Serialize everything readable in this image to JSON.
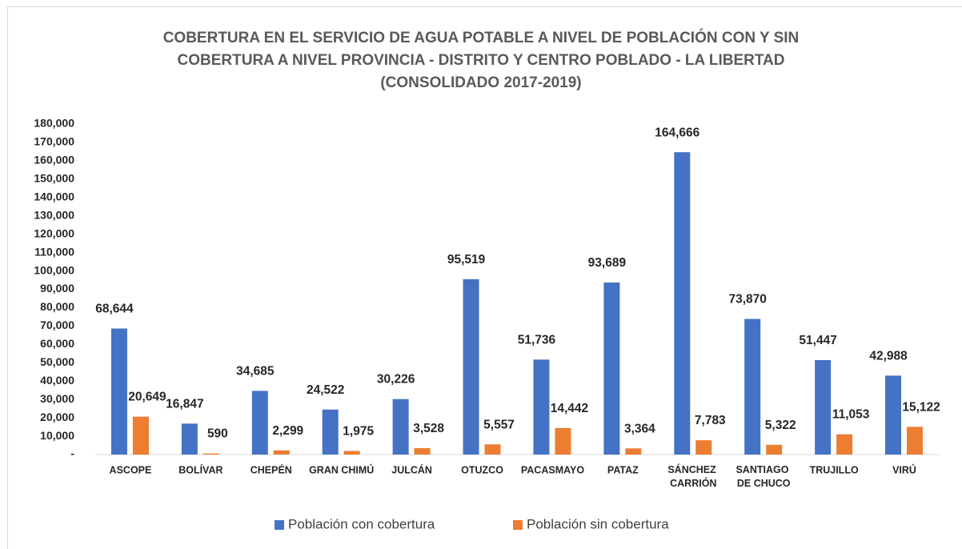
{
  "chart_data": {
    "type": "bar",
    "title": [
      "COBERTURA EN EL SERVICIO DE AGUA POTABLE A NIVEL DE POBLACIÓN CON Y SIN",
      "COBERTURA A NIVEL PROVINCIA - DISTRITO Y CENTRO POBLADO - LA LIBERTAD",
      "(CONSOLIDADO 2017-2019)"
    ],
    "categories": [
      "ASCOPE",
      "BOLÍVAR",
      "CHEPÉN",
      "GRAN CHIMÚ",
      "JULCÁN",
      "OTUZCO",
      "PACASMAYO",
      "PATAZ",
      "SÁNCHEZ CARRIÓN",
      "SANTIAGO DE CHUCO",
      "TRUJILLO",
      "VIRÚ"
    ],
    "series": [
      {
        "name": "Población con cobertura",
        "color": "#4472c4",
        "values": [
          68644,
          16847,
          34685,
          24522,
          30226,
          95519,
          51736,
          93689,
          164666,
          73870,
          51447,
          42988
        ],
        "value_labels": [
          "68,644",
          "16,847",
          "34,685",
          "24,522",
          "30,226",
          "95,519",
          "51,736",
          "93,689",
          "164,666",
          "73,870",
          "51,447",
          "42,988"
        ]
      },
      {
        "name": "Población sin cobertura",
        "color": "#ed7d31",
        "values": [
          20649,
          590,
          2299,
          1975,
          3528,
          5557,
          14442,
          3364,
          7783,
          5322,
          11053,
          15122
        ],
        "value_labels": [
          "20,649",
          "590",
          "2,299",
          "1,975",
          "3,528",
          "5,557",
          "14,442",
          "3,364",
          "7,783",
          "5,322",
          "11,053",
          "15,122"
        ]
      }
    ],
    "ylim": [
      0,
      180000
    ],
    "yticks": [
      {
        "value": 0,
        "label": "-"
      },
      {
        "value": 10000,
        "label": "10,000"
      },
      {
        "value": 20000,
        "label": "20,000"
      },
      {
        "value": 30000,
        "label": "30,000"
      },
      {
        "value": 40000,
        "label": "40,000"
      },
      {
        "value": 50000,
        "label": "50,000"
      },
      {
        "value": 60000,
        "label": "60,000"
      },
      {
        "value": 70000,
        "label": "70,000"
      },
      {
        "value": 80000,
        "label": "80,000"
      },
      {
        "value": 90000,
        "label": "90,000"
      },
      {
        "value": 100000,
        "label": "100,000"
      },
      {
        "value": 110000,
        "label": "110,000"
      },
      {
        "value": 120000,
        "label": "120,000"
      },
      {
        "value": 130000,
        "label": "130,000"
      },
      {
        "value": 140000,
        "label": "140,000"
      },
      {
        "value": 150000,
        "label": "150,000"
      },
      {
        "value": 160000,
        "label": "160,000"
      },
      {
        "value": 170000,
        "label": "170,000"
      },
      {
        "value": 180000,
        "label": "180,000"
      }
    ],
    "grid": false,
    "legend": "bottom"
  }
}
